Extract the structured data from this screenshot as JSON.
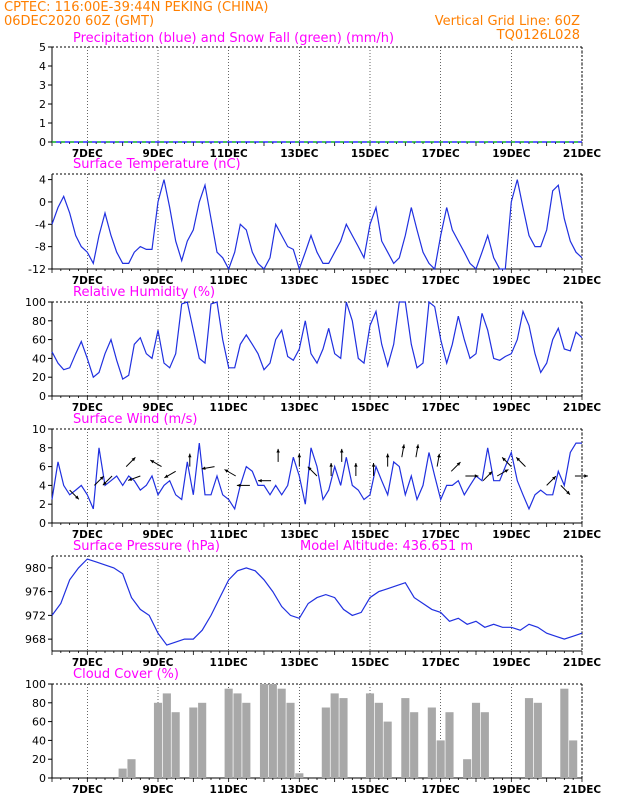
{
  "header": {
    "line1_left": "CPTEC:   116:00E-39:44N   PEKING (CHINA)",
    "line2_left": "06DEC2020 60Z (GMT)",
    "line1_right": "Vertical Grid Line: 60Z",
    "line2_right": "TQ0126L028"
  },
  "colors": {
    "title": "#ff00ff",
    "header": "#ff7f00",
    "line": "#2030e0",
    "rain": "#0000ff",
    "snow": "#00c000",
    "cloud": "#a8a8a8",
    "arrow": "#000000"
  },
  "x_labels": [
    "7DEC",
    "9DEC",
    "11DEC",
    "13DEC",
    "15DEC",
    "17DEC",
    "19DEC",
    "21DEC"
  ],
  "chart_data": [
    {
      "type": "line",
      "title": "Precipitation (blue) and Snow Fall (green) (mm/h)",
      "xlabels": [
        "7DEC",
        "9DEC",
        "11DEC",
        "13DEC",
        "15DEC",
        "17DEC",
        "19DEC",
        "21DEC"
      ],
      "ylim": [
        0,
        5
      ],
      "yticks": [
        0,
        1,
        2,
        3,
        4,
        5
      ],
      "series": [
        {
          "name": "Precipitation",
          "color": "#0000ff",
          "values": [
            0,
            0,
            0,
            0,
            0,
            0,
            0,
            0,
            0,
            0,
            0,
            0,
            0,
            0,
            0,
            0
          ]
        },
        {
          "name": "Snow Fall",
          "color": "#00c000",
          "values": [
            0,
            0,
            0,
            0,
            0,
            0,
            0,
            0,
            0,
            0,
            0,
            0,
            0,
            0,
            0,
            0
          ]
        }
      ]
    },
    {
      "type": "line",
      "title": "Surface Temperature (nC)",
      "xlabels": [
        "7DEC",
        "9DEC",
        "11DEC",
        "13DEC",
        "15DEC",
        "17DEC",
        "19DEC",
        "21DEC"
      ],
      "ylim": [
        -12,
        5
      ],
      "yticks": [
        -12,
        -8,
        -4,
        0,
        4
      ],
      "x": [
        6,
        6.17,
        6.33,
        6.5,
        6.67,
        6.83,
        7,
        7.17,
        7.33,
        7.5,
        7.67,
        7.83,
        8,
        8.17,
        8.33,
        8.5,
        8.67,
        8.83,
        9,
        9.17,
        9.33,
        9.5,
        9.67,
        9.83,
        10,
        10.17,
        10.33,
        10.5,
        10.67,
        10.83,
        11,
        11.17,
        11.33,
        11.5,
        11.67,
        11.83,
        12,
        12.17,
        12.33,
        12.5,
        12.67,
        12.83,
        13,
        13.17,
        13.33,
        13.5,
        13.67,
        13.83,
        14,
        14.17,
        14.33,
        14.5,
        14.67,
        14.83,
        15,
        15.17,
        15.33,
        15.5,
        15.67,
        15.83,
        16,
        16.17,
        16.33,
        16.5,
        16.67,
        16.83,
        17,
        17.17,
        17.33,
        17.5,
        17.67,
        17.83,
        18,
        18.17,
        18.33,
        18.5,
        18.67,
        18.83,
        19,
        19.17,
        19.33,
        19.5,
        19.67,
        19.83,
        20,
        20.17,
        20.33,
        20.5,
        20.67,
        20.83,
        21
      ],
      "values": [
        -4,
        -1,
        1,
        -2,
        -6,
        -8,
        -9,
        -11,
        -6,
        -2,
        -6,
        -9,
        -11,
        -11,
        -9,
        -8,
        -8.5,
        -8.5,
        0,
        4,
        -1,
        -7,
        -10.5,
        -7,
        -5,
        0,
        3,
        -3,
        -9,
        -10,
        -12,
        -9,
        -4,
        -5,
        -9,
        -11,
        -12,
        -10,
        -4,
        -6,
        -8,
        -8.5,
        -12,
        -9,
        -6,
        -9,
        -11,
        -11,
        -9,
        -7,
        -4,
        -6,
        -8,
        -10,
        -4,
        -1,
        -7,
        -9,
        -11,
        -10,
        -6,
        -1,
        -5,
        -9,
        -11,
        -12,
        -6,
        -1,
        -5,
        -7,
        -9,
        -11,
        -12,
        -9,
        -6,
        -10,
        -12,
        -12,
        0,
        4,
        -1,
        -6,
        -8,
        -8,
        -5,
        2,
        3,
        -3,
        -7,
        -9,
        -10
      ]
    },
    {
      "type": "line",
      "title": "Relative Humidity (%)",
      "xlabels": [
        "7DEC",
        "9DEC",
        "11DEC",
        "13DEC",
        "15DEC",
        "17DEC",
        "19DEC",
        "21DEC"
      ],
      "ylim": [
        0,
        100
      ],
      "yticks": [
        0,
        20,
        40,
        60,
        80,
        100
      ],
      "x": [
        6,
        6.17,
        6.33,
        6.5,
        6.67,
        6.83,
        7,
        7.17,
        7.33,
        7.5,
        7.67,
        7.83,
        8,
        8.17,
        8.33,
        8.5,
        8.67,
        8.83,
        9,
        9.17,
        9.33,
        9.5,
        9.67,
        9.83,
        10,
        10.17,
        10.33,
        10.5,
        10.67,
        10.83,
        11,
        11.17,
        11.33,
        11.5,
        11.67,
        11.83,
        12,
        12.17,
        12.33,
        12.5,
        12.67,
        12.83,
        13,
        13.17,
        13.33,
        13.5,
        13.67,
        13.83,
        14,
        14.17,
        14.33,
        14.5,
        14.67,
        14.83,
        15,
        15.17,
        15.33,
        15.5,
        15.67,
        15.83,
        16,
        16.17,
        16.33,
        16.5,
        16.67,
        16.83,
        17,
        17.17,
        17.33,
        17.5,
        17.67,
        17.83,
        18,
        18.17,
        18.33,
        18.5,
        18.67,
        18.83,
        19,
        19.17,
        19.33,
        19.5,
        19.67,
        19.83,
        20,
        20.17,
        20.33,
        20.5,
        20.67,
        20.83,
        21
      ],
      "values": [
        47,
        35,
        28,
        30,
        45,
        58,
        40,
        20,
        25,
        45,
        60,
        38,
        18,
        22,
        55,
        62,
        45,
        40,
        70,
        35,
        30,
        45,
        98,
        100,
        70,
        40,
        35,
        98,
        100,
        60,
        30,
        30,
        55,
        65,
        55,
        45,
        28,
        35,
        60,
        70,
        42,
        38,
        50,
        80,
        45,
        35,
        50,
        72,
        45,
        40,
        100,
        80,
        40,
        35,
        75,
        90,
        55,
        32,
        55,
        100,
        100,
        55,
        30,
        35,
        100,
        95,
        60,
        35,
        55,
        85,
        60,
        40,
        45,
        88,
        70,
        40,
        38,
        42,
        45,
        60,
        90,
        75,
        45,
        25,
        35,
        60,
        72,
        50,
        48,
        68,
        62
      ]
    },
    {
      "type": "line",
      "title": "Surface Wind (m/s)",
      "xlabels": [
        "7DEC",
        "9DEC",
        "11DEC",
        "13DEC",
        "15DEC",
        "17DEC",
        "19DEC",
        "21DEC"
      ],
      "ylim": [
        0,
        10
      ],
      "yticks": [
        0,
        2,
        4,
        6,
        8,
        10
      ],
      "x": [
        6,
        6.17,
        6.33,
        6.5,
        6.67,
        6.83,
        7,
        7.17,
        7.33,
        7.5,
        7.67,
        7.83,
        8,
        8.17,
        8.33,
        8.5,
        8.67,
        8.83,
        9,
        9.17,
        9.33,
        9.5,
        9.67,
        9.83,
        10,
        10.17,
        10.33,
        10.5,
        10.67,
        10.83,
        11,
        11.17,
        11.33,
        11.5,
        11.67,
        11.83,
        12,
        12.17,
        12.33,
        12.5,
        12.67,
        12.83,
        13,
        13.17,
        13.33,
        13.5,
        13.67,
        13.83,
        14,
        14.17,
        14.33,
        14.5,
        14.67,
        14.83,
        15,
        15.17,
        15.33,
        15.5,
        15.67,
        15.83,
        16,
        16.17,
        16.33,
        16.5,
        16.67,
        16.83,
        17,
        17.17,
        17.33,
        17.5,
        17.67,
        17.83,
        18,
        18.17,
        18.33,
        18.5,
        18.67,
        18.83,
        19,
        19.17,
        19.33,
        19.5,
        19.67,
        19.83,
        20,
        20.17,
        20.33,
        20.5,
        20.67,
        20.83,
        21
      ],
      "values": [
        2.5,
        6.5,
        4,
        3,
        3.5,
        4,
        3,
        1.5,
        8,
        4,
        4.5,
        5,
        4,
        5,
        4.5,
        3.5,
        4,
        5,
        3,
        4,
        4.5,
        3,
        2.5,
        6.5,
        3,
        8.5,
        3,
        3,
        5,
        3,
        2.5,
        1.5,
        4,
        6,
        5.5,
        4,
        4,
        3,
        4,
        3,
        4,
        7,
        5,
        2,
        8,
        6,
        2.5,
        3.5,
        6,
        4,
        7,
        4,
        3.5,
        2.5,
        3,
        6,
        4.5,
        3,
        6.5,
        6,
        3,
        5,
        2.5,
        4,
        7.5,
        5,
        2.5,
        4,
        4,
        4.5,
        3,
        4,
        5,
        4.5,
        8,
        4.5,
        4.5,
        6,
        7.5,
        4.5,
        3,
        1.5,
        3,
        3.5,
        3,
        3,
        5.5,
        4,
        7.5,
        8.5,
        8.5
      ],
      "arrows": [
        {
          "x": 6.5,
          "speed": 3.5,
          "dir_deg": 315
        },
        {
          "x": 7.2,
          "speed": 4,
          "dir_deg": 45
        },
        {
          "x": 7.7,
          "speed": 5,
          "dir_deg": 225
        },
        {
          "x": 8.1,
          "speed": 6,
          "dir_deg": 45
        },
        {
          "x": 8.5,
          "speed": 5,
          "dir_deg": 200
        },
        {
          "x": 9.1,
          "speed": 6,
          "dir_deg": 150
        },
        {
          "x": 9.5,
          "speed": 5.5,
          "dir_deg": 210
        },
        {
          "x": 9.9,
          "speed": 6,
          "dir_deg": 90
        },
        {
          "x": 10.6,
          "speed": 6,
          "dir_deg": 190
        },
        {
          "x": 11.2,
          "speed": 5,
          "dir_deg": 150
        },
        {
          "x": 11.6,
          "speed": 4,
          "dir_deg": 180
        },
        {
          "x": 12.2,
          "speed": 4.5,
          "dir_deg": 180
        },
        {
          "x": 12.4,
          "speed": 6.5,
          "dir_deg": 90
        },
        {
          "x": 13.0,
          "speed": 6,
          "dir_deg": 90
        },
        {
          "x": 13.5,
          "speed": 5,
          "dir_deg": 135
        },
        {
          "x": 13.9,
          "speed": 5,
          "dir_deg": 90
        },
        {
          "x": 14.2,
          "speed": 6.5,
          "dir_deg": 90
        },
        {
          "x": 14.6,
          "speed": 5,
          "dir_deg": 90
        },
        {
          "x": 15.1,
          "speed": 5,
          "dir_deg": 90
        },
        {
          "x": 15.5,
          "speed": 6,
          "dir_deg": 90
        },
        {
          "x": 15.9,
          "speed": 7,
          "dir_deg": 80
        },
        {
          "x": 16.3,
          "speed": 7,
          "dir_deg": 80
        },
        {
          "x": 16.9,
          "speed": 6,
          "dir_deg": 80
        },
        {
          "x": 17.3,
          "speed": 5.5,
          "dir_deg": 45
        },
        {
          "x": 17.7,
          "speed": 5,
          "dir_deg": 0
        },
        {
          "x": 18.2,
          "speed": 4.5,
          "dir_deg": 45
        },
        {
          "x": 18.6,
          "speed": 5,
          "dir_deg": 30
        },
        {
          "x": 19.0,
          "speed": 6,
          "dir_deg": 135
        },
        {
          "x": 19.4,
          "speed": 6,
          "dir_deg": 135
        },
        {
          "x": 20.0,
          "speed": 4,
          "dir_deg": 45
        },
        {
          "x": 20.4,
          "speed": 4,
          "dir_deg": 315
        },
        {
          "x": 20.8,
          "speed": 5,
          "dir_deg": 0
        }
      ]
    },
    {
      "type": "line",
      "title": "Surface Pressure (hPa)",
      "subtitle": "Model Altitude: 436.651 m",
      "xlabels": [
        "7DEC",
        "9DEC",
        "11DEC",
        "13DEC",
        "15DEC",
        "17DEC",
        "19DEC",
        "21DEC"
      ],
      "ylim": [
        966,
        982
      ],
      "yticks": [
        968,
        972,
        976,
        980
      ],
      "x": [
        6,
        6.25,
        6.5,
        6.75,
        7,
        7.25,
        7.5,
        7.75,
        8,
        8.25,
        8.5,
        8.75,
        9,
        9.25,
        9.5,
        9.75,
        10,
        10.25,
        10.5,
        10.75,
        11,
        11.25,
        11.5,
        11.75,
        12,
        12.25,
        12.5,
        12.75,
        13,
        13.25,
        13.5,
        13.75,
        14,
        14.25,
        14.5,
        14.75,
        15,
        15.25,
        15.5,
        15.75,
        16,
        16.25,
        16.5,
        16.75,
        17,
        17.25,
        17.5,
        17.75,
        18,
        18.25,
        18.5,
        18.75,
        19,
        19.25,
        19.5,
        19.75,
        20,
        20.25,
        20.5,
        20.75,
        21
      ],
      "values": [
        972,
        974,
        978,
        980,
        981.5,
        981,
        980.5,
        980,
        979,
        975,
        973,
        972,
        969,
        967,
        967.5,
        968,
        968,
        969.5,
        972,
        975,
        978,
        979.5,
        980,
        979.5,
        978,
        976,
        973.5,
        972,
        971.5,
        974,
        975,
        975.5,
        975,
        973,
        972,
        972.5,
        975,
        976,
        976.5,
        977,
        977.5,
        975,
        974,
        973,
        972.5,
        971,
        971.5,
        970.5,
        971,
        970,
        970.5,
        970,
        970,
        969.5,
        970.5,
        970,
        969,
        968.5,
        968,
        968.5,
        969
      ]
    },
    {
      "type": "bar",
      "title": "Cloud Cover (%)",
      "xlabels": [
        "7DEC",
        "9DEC",
        "11DEC",
        "13DEC",
        "15DEC",
        "17DEC",
        "19DEC",
        "21DEC"
      ],
      "ylim": [
        0,
        100
      ],
      "yticks": [
        0,
        20,
        40,
        60,
        80,
        100
      ],
      "x": [
        6,
        6.25,
        6.5,
        6.75,
        7,
        7.25,
        7.5,
        7.75,
        8,
        8.25,
        8.5,
        8.75,
        9,
        9.25,
        9.5,
        9.75,
        10,
        10.25,
        10.5,
        10.75,
        11,
        11.25,
        11.5,
        11.75,
        12,
        12.25,
        12.5,
        12.75,
        13,
        13.25,
        13.5,
        13.75,
        14,
        14.25,
        14.5,
        14.75,
        15,
        15.25,
        15.5,
        15.75,
        16,
        16.25,
        16.5,
        16.75,
        17,
        17.25,
        17.5,
        17.75,
        18,
        18.25,
        18.5,
        18.75,
        19,
        19.25,
        19.5,
        19.75,
        20,
        20.25,
        20.5,
        20.75,
        21
      ],
      "values": [
        0,
        0,
        0,
        0,
        0,
        0,
        0,
        0,
        10,
        20,
        0,
        0,
        80,
        90,
        70,
        0,
        75,
        80,
        0,
        0,
        95,
        90,
        80,
        0,
        100,
        100,
        95,
        80,
        5,
        0,
        0,
        75,
        90,
        85,
        0,
        0,
        90,
        80,
        60,
        0,
        85,
        70,
        0,
        75,
        40,
        70,
        0,
        20,
        80,
        70,
        0,
        0,
        0,
        0,
        85,
        80,
        0,
        0,
        95,
        40,
        0
      ]
    }
  ]
}
